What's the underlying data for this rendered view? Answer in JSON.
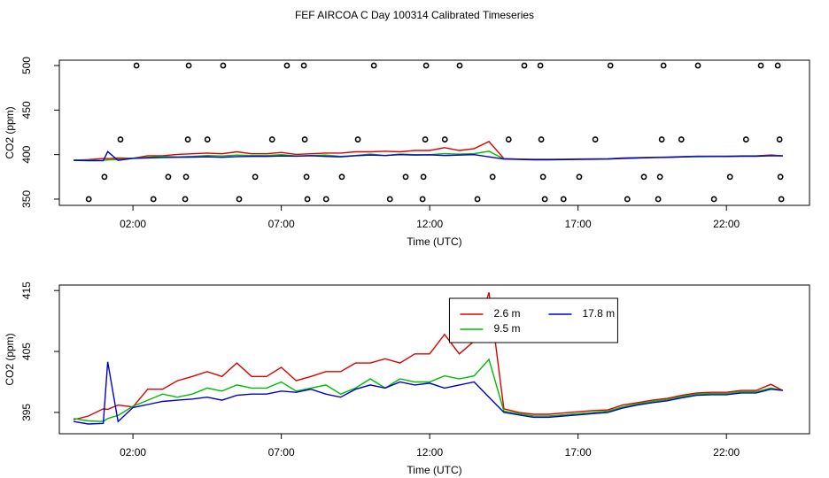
{
  "chart_data": [
    {
      "type": "line",
      "title": "FEF AIRCOA C  Day 100314  Calibrated Timeseries",
      "xlabel": "Time (UTC)",
      "ylabel": "CO2 (ppm)",
      "xlim": [
        -0.48,
        24.8
      ],
      "ylim": [
        343,
        506
      ],
      "xticks": [
        {
          "value": 2,
          "label": "02:00"
        },
        {
          "value": 7,
          "label": "07:00"
        },
        {
          "value": 12,
          "label": "12:00"
        },
        {
          "value": 17,
          "label": "17:00"
        },
        {
          "value": 22,
          "label": "22:00"
        }
      ],
      "yticks": [
        350,
        400,
        450,
        500
      ],
      "x": [
        0,
        0.5,
        1,
        1.15,
        1.5,
        2,
        2.5,
        3,
        3.5,
        4,
        4.5,
        5,
        5.5,
        6,
        6.5,
        7,
        7.5,
        8,
        8.5,
        9,
        9.5,
        10,
        10.5,
        11,
        11.5,
        12,
        12.5,
        13,
        13.5,
        14,
        14.5,
        15,
        15.5,
        16,
        16.5,
        17,
        17.5,
        18,
        18.5,
        19,
        19.5,
        20,
        20.5,
        21,
        21.5,
        22,
        22.5,
        23,
        23.5,
        23.9
      ],
      "series": [
        {
          "color": "#dd0000",
          "style": "line",
          "values": [
            393.8,
            394.4,
            395.6,
            395.5,
            396.2,
            395.9,
            398.8,
            398.8,
            400.2,
            400.9,
            401.7,
            400.9,
            403.1,
            400.9,
            400.9,
            402.4,
            400.2,
            400.9,
            401.7,
            401.7,
            403.1,
            403.1,
            403.8,
            403.1,
            404.6,
            404.6,
            407.8,
            404.6,
            406.7,
            414.7,
            395.6,
            395.0,
            394.7,
            394.7,
            394.9,
            395.1,
            395.3,
            395.4,
            396.2,
            396.6,
            397.0,
            397.3,
            397.8,
            398.2,
            398.3,
            398.3,
            398.6,
            398.6,
            399.6,
            398.6
          ]
        },
        {
          "color": "#00bb00",
          "style": "line",
          "values": [
            394.0,
            393.6,
            393.5,
            394.0,
            394.5,
            396.0,
            397.0,
            398.0,
            397.5,
            398.0,
            399.0,
            398.5,
            399.5,
            399.0,
            399.0,
            400.0,
            398.5,
            399.0,
            399.5,
            398.0,
            399.0,
            400.5,
            399.0,
            400.5,
            400.0,
            400.0,
            401.0,
            400.5,
            401.0,
            403.7,
            395.2,
            394.8,
            394.4,
            394.4,
            394.6,
            394.8,
            395.0,
            395.2,
            395.9,
            396.4,
            396.8,
            397.1,
            397.6,
            398.0,
            398.1,
            398.1,
            398.4,
            398.4,
            399.0,
            398.6
          ]
        },
        {
          "color": "#0000cc",
          "style": "line",
          "values": [
            393.5,
            393.1,
            393.2,
            403.3,
            393.5,
            395.8,
            396.3,
            396.8,
            397.0,
            397.2,
            397.5,
            397.0,
            397.8,
            398.0,
            398.0,
            398.5,
            398.3,
            398.8,
            398.0,
            397.5,
            398.8,
            399.5,
            399.0,
            400.0,
            399.5,
            399.8,
            399.0,
            399.5,
            400.0,
            397.5,
            395.0,
            394.6,
            394.2,
            394.2,
            394.4,
            394.6,
            394.8,
            395.0,
            395.7,
            396.2,
            396.6,
            396.9,
            397.4,
            397.8,
            397.9,
            397.9,
            398.2,
            398.2,
            398.8,
            398.6
          ]
        },
        {
          "color": "#000000",
          "style": "points",
          "x": [
            2.12,
            3.88,
            5.04,
            7.19,
            7.76,
            10.12,
            11.88,
            13.01,
            15.19,
            15.73,
            18.09,
            19.88,
            21.04,
            23.16,
            23.73,
            1.58,
            3.85,
            4.51,
            6.69,
            7.79,
            9.58,
            11.85,
            12.51,
            14.66,
            15.76,
            17.58,
            19.82,
            20.48,
            22.66,
            23.79,
            1.04,
            3.19,
            3.79,
            6.12,
            7.85,
            9.04,
            11.19,
            11.79,
            14.12,
            15.82,
            17.04,
            19.22,
            19.76,
            22.12,
            23.82,
            0.51,
            2.69,
            3.76,
            5.58,
            7.88,
            8.51,
            10.66,
            11.76,
            13.61,
            15.88,
            16.51,
            18.66,
            19.7,
            21.58,
            23.85
          ],
          "values": [
            500,
            500,
            500,
            500,
            500,
            500,
            500,
            500,
            500,
            500,
            500,
            500,
            500,
            500,
            500,
            417,
            417,
            417,
            417,
            417,
            417,
            417,
            417,
            417,
            417,
            417,
            417,
            417,
            417,
            417,
            375,
            375,
            375,
            375,
            375,
            375,
            375,
            375,
            375,
            375,
            375,
            375,
            375,
            375,
            375,
            350,
            350,
            350,
            350,
            350,
            350,
            350,
            350,
            350,
            350,
            350,
            350,
            350,
            350,
            350
          ]
        }
      ]
    },
    {
      "type": "line",
      "xlabel": "Time (UTC)",
      "ylabel": "CO2 (ppm)",
      "xlim": [
        -0.48,
        24.8
      ],
      "ylim": [
        391.5,
        415.9
      ],
      "xticks": [
        {
          "value": 2,
          "label": "02:00"
        },
        {
          "value": 7,
          "label": "07:00"
        },
        {
          "value": 12,
          "label": "12:00"
        },
        {
          "value": 17,
          "label": "17:00"
        },
        {
          "value": 22,
          "label": "22:00"
        }
      ],
      "yticks": [
        395,
        405,
        415
      ],
      "legend": "top",
      "legend_columns": 2,
      "x": [
        0,
        0.5,
        1,
        1.15,
        1.5,
        2,
        2.5,
        3,
        3.5,
        4,
        4.5,
        5,
        5.5,
        6,
        6.5,
        7,
        7.5,
        8,
        8.5,
        9,
        9.5,
        10,
        10.5,
        11,
        11.5,
        12,
        12.5,
        13,
        13.5,
        14,
        14.5,
        15,
        15.5,
        16,
        16.5,
        17,
        17.5,
        18,
        18.5,
        19,
        19.5,
        20,
        20.5,
        21,
        21.5,
        22,
        22.5,
        23,
        23.5,
        23.9
      ],
      "series": [
        {
          "name": "2.6 m",
          "color": "#dd0000",
          "style": "line",
          "values": [
            393.8,
            394.4,
            395.6,
            395.5,
            396.2,
            395.9,
            398.8,
            398.8,
            400.2,
            400.9,
            401.7,
            400.9,
            403.1,
            400.9,
            400.9,
            402.4,
            400.2,
            400.9,
            401.7,
            401.7,
            403.1,
            403.1,
            403.8,
            403.1,
            404.6,
            404.6,
            407.8,
            404.6,
            406.7,
            414.7,
            395.6,
            395.0,
            394.7,
            394.7,
            394.9,
            395.1,
            395.3,
            395.4,
            396.2,
            396.6,
            397.0,
            397.3,
            397.8,
            398.2,
            398.3,
            398.3,
            398.6,
            398.6,
            399.6,
            398.6
          ]
        },
        {
          "name": "9.5 m",
          "color": "#00bb00",
          "style": "line",
          "values": [
            394.0,
            393.6,
            393.5,
            394.0,
            394.5,
            396.0,
            397.0,
            398.0,
            397.5,
            398.0,
            399.0,
            398.5,
            399.5,
            399.0,
            399.0,
            400.0,
            398.5,
            399.0,
            399.5,
            398.0,
            399.0,
            400.5,
            399.0,
            400.5,
            400.0,
            400.0,
            401.0,
            400.5,
            401.0,
            403.7,
            395.2,
            394.8,
            394.4,
            394.4,
            394.6,
            394.8,
            395.0,
            395.2,
            395.9,
            396.4,
            396.8,
            397.1,
            397.6,
            398.0,
            398.1,
            398.1,
            398.4,
            398.4,
            399.0,
            398.6
          ]
        },
        {
          "name": "17.8 m",
          "color": "#0000cc",
          "style": "line",
          "values": [
            393.5,
            393.1,
            393.2,
            403.3,
            393.5,
            395.8,
            396.3,
            396.8,
            397.0,
            397.2,
            397.5,
            397.0,
            397.8,
            398.0,
            398.0,
            398.5,
            398.3,
            398.8,
            398.0,
            397.5,
            398.8,
            399.5,
            399.0,
            400.0,
            399.5,
            399.8,
            399.0,
            399.5,
            400.0,
            397.5,
            395.0,
            394.6,
            394.2,
            394.2,
            394.4,
            394.6,
            394.8,
            395.0,
            395.7,
            396.2,
            396.6,
            396.9,
            397.4,
            397.8,
            397.9,
            397.9,
            398.2,
            398.2,
            398.8,
            398.6
          ]
        }
      ]
    }
  ]
}
